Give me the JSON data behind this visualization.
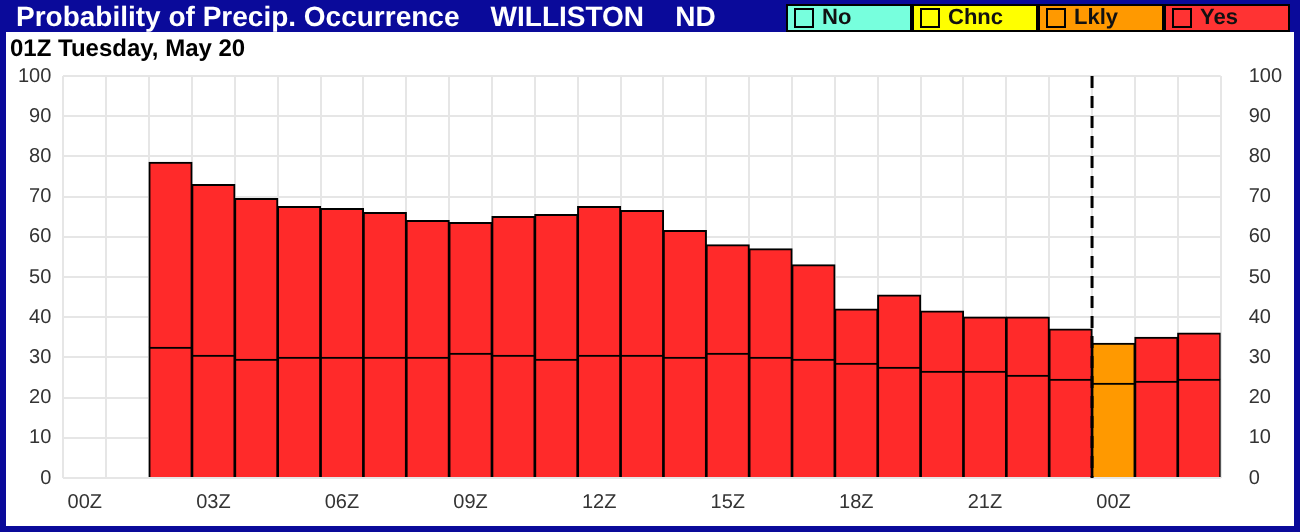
{
  "chart_data": {
    "type": "bar",
    "title": "Probability of Precip. Occurrence    WILLISTON    ND",
    "subtitle": "01Z Tuesday, May 20",
    "categories": [
      "00Z",
      null,
      null,
      "03Z",
      null,
      null,
      "06Z",
      null,
      null,
      "09Z",
      null,
      null,
      "12Z",
      null,
      null,
      "15Z",
      null,
      null,
      "18Z",
      null,
      null,
      "21Z",
      null,
      null,
      "00Z",
      null,
      null
    ],
    "stacked": true,
    "series": [
      {
        "colors": [
          "#ff2a2a",
          "#ff2a2a",
          "#ff2a2a",
          "#ff2a2a",
          "#ff2a2a",
          "#ff2a2a",
          "#ff2a2a",
          "#ff2a2a",
          "#ff2a2a",
          "#ff2a2a",
          "#ff2a2a",
          "#ff2a2a",
          "#ff2a2a",
          "#ff2a2a",
          "#ff2a2a",
          "#ff2a2a",
          "#ff2a2a",
          "#ff2a2a",
          "#ff2a2a",
          "#ff2a2a",
          "#ff2a2a",
          "#ff2a2a",
          "#ff2a2a",
          "#ff2a2a",
          "#ff9900",
          "#ff2a2a",
          "#ff2a2a"
        ],
        "values": [
          null,
          null,
          32.5,
          30.5,
          29.5,
          30,
          30,
          30,
          30,
          31,
          30.5,
          29.5,
          30.5,
          30.5,
          30,
          31,
          30,
          29.5,
          28.5,
          27.5,
          26.5,
          26.5,
          25.5,
          24.5,
          23.5,
          24,
          24.5
        ]
      },
      {
        "colors": [
          "#ff2a2a",
          "#ff2a2a",
          "#ff2a2a",
          "#ff2a2a",
          "#ff2a2a",
          "#ff2a2a",
          "#ff2a2a",
          "#ff2a2a",
          "#ff2a2a",
          "#ff2a2a",
          "#ff2a2a",
          "#ff2a2a",
          "#ff2a2a",
          "#ff2a2a",
          "#ff2a2a",
          "#ff2a2a",
          "#ff2a2a",
          "#ff2a2a",
          "#ff2a2a",
          "#ff2a2a",
          "#ff2a2a",
          "#ff2a2a",
          "#ff2a2a",
          "#ff2a2a",
          "#ff9900",
          "#ff2a2a",
          "#ff2a2a"
        ],
        "values": [
          null,
          null,
          46,
          42.5,
          40,
          37.5,
          37,
          36,
          34,
          32.5,
          34.5,
          36,
          37,
          36,
          31.5,
          27,
          27,
          23.5,
          13.5,
          18,
          15,
          13.5,
          14.5,
          12.5,
          10,
          11,
          11.5
        ]
      },
      {
        "name": "No",
        "color": "#77ffdd",
        "values": [
          null,
          null,
          null,
          null,
          null,
          null,
          null,
          null,
          null,
          null,
          null,
          null,
          null,
          null,
          null,
          null,
          null,
          null,
          null,
          null,
          null,
          null,
          null,
          null,
          null,
          null,
          null
        ]
      },
      {
        "name": "Chnc",
        "color": "#ffff00",
        "values": [
          null,
          null,
          null,
          null,
          null,
          null,
          null,
          null,
          null,
          null,
          null,
          null,
          null,
          null,
          null,
          null,
          null,
          null,
          null,
          null,
          null,
          null,
          null,
          null,
          null,
          null,
          null
        ]
      },
      {
        "name": "Lkly",
        "color": "#ff9900",
        "values": [
          null,
          null,
          null,
          null,
          null,
          null,
          null,
          null,
          null,
          null,
          null,
          null,
          null,
          null,
          null,
          null,
          null,
          null,
          null,
          null,
          null,
          null,
          null,
          null,
          null,
          null,
          null
        ]
      },
      {
        "name": "Yes",
        "color": "#ff3333",
        "values": [
          null,
          null,
          null,
          null,
          null,
          null,
          null,
          null,
          null,
          null,
          null,
          null,
          null,
          null,
          null,
          null,
          null,
          null,
          null,
          null,
          null,
          null,
          null,
          null,
          null,
          null,
          null
        ]
      }
    ],
    "ylim": [
      0,
      100
    ],
    "yticks": [
      0,
      10,
      20,
      30,
      40,
      50,
      60,
      70,
      80,
      90,
      100
    ],
    "y2lim": [
      0,
      100
    ],
    "y2ticks": [
      0,
      10,
      20,
      30,
      40,
      50,
      60,
      70,
      80,
      90,
      100
    ],
    "grid": true,
    "legend": "top right"
  }
}
